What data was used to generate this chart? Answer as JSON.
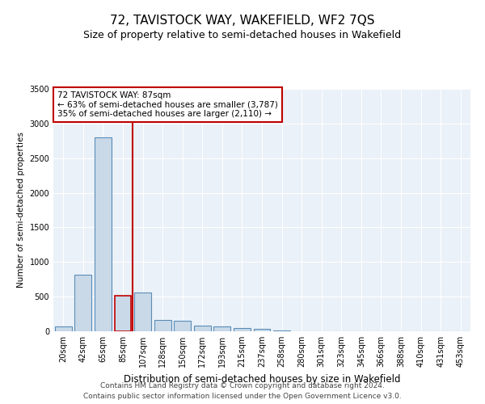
{
  "title": "72, TAVISTOCK WAY, WAKEFIELD, WF2 7QS",
  "subtitle": "Size of property relative to semi-detached houses in Wakefield",
  "xlabel": "Distribution of semi-detached houses by size in Wakefield",
  "ylabel": "Number of semi-detached properties",
  "categories": [
    "20sqm",
    "42sqm",
    "65sqm",
    "85sqm",
    "107sqm",
    "128sqm",
    "150sqm",
    "172sqm",
    "193sqm",
    "215sqm",
    "237sqm",
    "258sqm",
    "280sqm",
    "301sqm",
    "323sqm",
    "345sqm",
    "366sqm",
    "388sqm",
    "410sqm",
    "431sqm",
    "453sqm"
  ],
  "values": [
    75,
    820,
    2800,
    510,
    560,
    165,
    155,
    80,
    70,
    45,
    40,
    10,
    0,
    0,
    0,
    0,
    0,
    0,
    0,
    0,
    0
  ],
  "bar_color": "#c9d9e8",
  "bar_edge_color": "#5b8db8",
  "highlight_bar_index": 3,
  "highlight_edge_color": "#c00000",
  "vline_color": "#c00000",
  "annotation_text": "72 TAVISTOCK WAY: 87sqm\n← 63% of semi-detached houses are smaller (3,787)\n35% of semi-detached houses are larger (2,110) →",
  "annotation_box_color": "white",
  "annotation_box_edge_color": "#c00000",
  "ylim": [
    0,
    3500
  ],
  "yticks": [
    0,
    500,
    1000,
    1500,
    2000,
    2500,
    3000,
    3500
  ],
  "footer_line1": "Contains HM Land Registry data © Crown copyright and database right 2024.",
  "footer_line2": "Contains public sector information licensed under the Open Government Licence v3.0.",
  "bg_color": "#eaf1f8",
  "grid_color": "white",
  "title_fontsize": 11,
  "subtitle_fontsize": 9,
  "footer_fontsize": 6.5,
  "ylabel_fontsize": 7.5,
  "xlabel_fontsize": 8.5,
  "tick_fontsize": 7,
  "annot_fontsize": 7.5
}
